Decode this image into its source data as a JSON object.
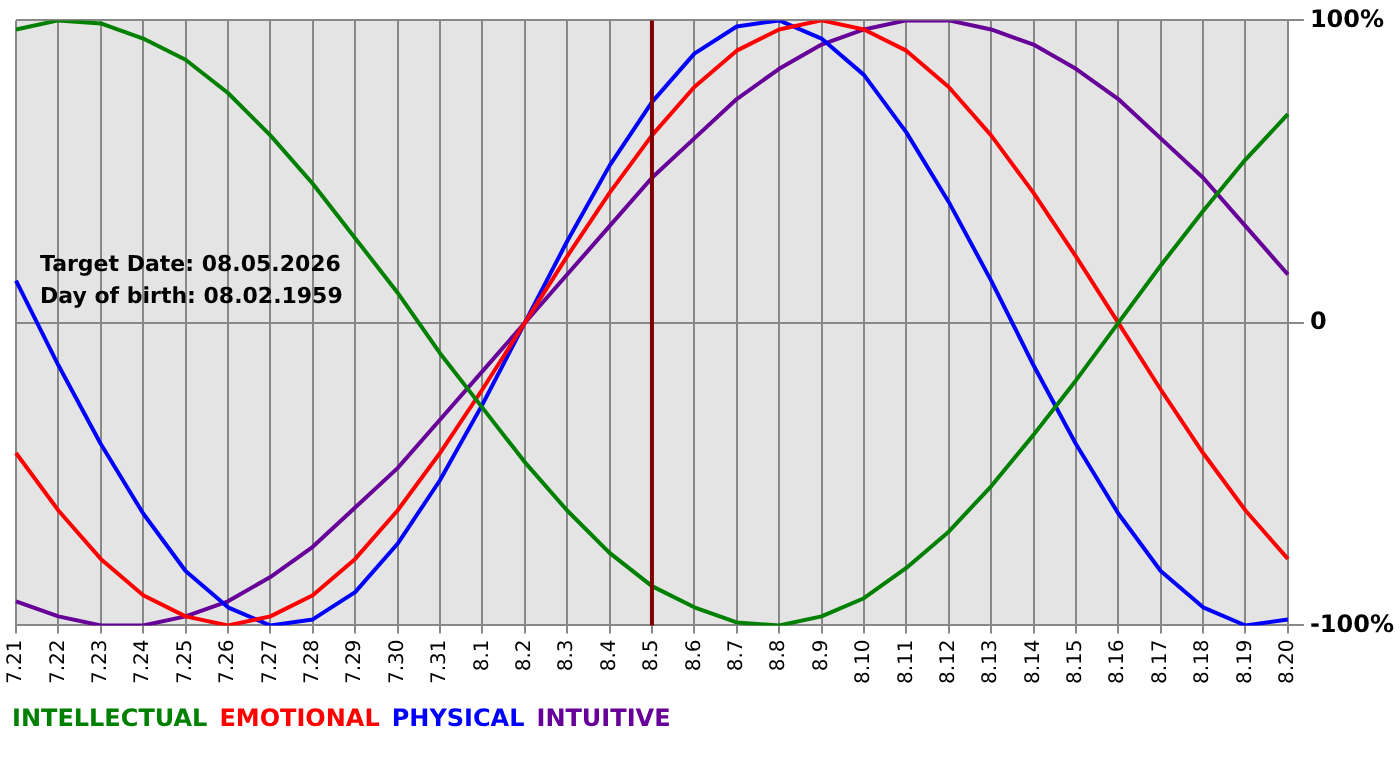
{
  "chart_data": {
    "type": "line",
    "categories": [
      "7.21",
      "7.22",
      "7.23",
      "7.24",
      "7.25",
      "7.26",
      "7.27",
      "7.28",
      "7.29",
      "7.30",
      "7.31",
      "8.1",
      "8.2",
      "8.3",
      "8.4",
      "8.5",
      "8.6",
      "8.7",
      "8.8",
      "8.9",
      "8.10",
      "8.11",
      "8.12",
      "8.13",
      "8.14",
      "8.15",
      "8.16",
      "8.17",
      "8.18",
      "8.19",
      "8.20"
    ],
    "series": [
      {
        "name": "INTELLECTUAL",
        "color": "#008000",
        "values": [
          97,
          100,
          99,
          94,
          87,
          76,
          62,
          46,
          28,
          10,
          -10,
          -28,
          -46,
          -62,
          -76,
          -87,
          -94,
          -99,
          -100,
          -97,
          -91,
          -81,
          -69,
          -54,
          -37,
          -19,
          0,
          19,
          37,
          54,
          69
        ]
      },
      {
        "name": "EMOTIONAL",
        "color": "#ff0000",
        "values": [
          -43,
          -62,
          -78,
          -90,
          -97,
          -100,
          -97,
          -90,
          -78,
          -62,
          -43,
          -22,
          0,
          22,
          43,
          62,
          78,
          90,
          97,
          100,
          97,
          90,
          78,
          62,
          43,
          22,
          0,
          -22,
          -43,
          -62,
          -78
        ]
      },
      {
        "name": "PHYSICAL",
        "color": "#0000ff",
        "values": [
          14,
          -14,
          -40,
          -63,
          -82,
          -94,
          -100,
          -98,
          -89,
          -73,
          -52,
          -27,
          0,
          27,
          52,
          73,
          89,
          98,
          100,
          94,
          82,
          63,
          40,
          14,
          -14,
          -40,
          -63,
          -82,
          -94,
          -100,
          -98
        ]
      },
      {
        "name": "INTUITIVE",
        "color": "#660099",
        "values": [
          -92,
          -97,
          -100,
          -100,
          -97,
          -92,
          -84,
          -74,
          -61,
          -48,
          -32,
          -16,
          0,
          16,
          32,
          48,
          61,
          74,
          84,
          92,
          97,
          100,
          100,
          97,
          92,
          84,
          74,
          61,
          48,
          32,
          16
        ]
      }
    ],
    "ylim": [
      -100,
      100
    ],
    "yticks": [
      {
        "value": 100,
        "label": "100%"
      },
      0,
      {
        "value": -100,
        "label": "-100%"
      }
    ],
    "grid": true,
    "legend": "bottom left",
    "marker": "none",
    "ref_lines": [
      {
        "axis": "x",
        "value": "8.5",
        "color": "#800000"
      }
    ],
    "annotations": [
      "Target Date: 08.05.2026",
      "Day of birth: 08.02.1959"
    ]
  }
}
